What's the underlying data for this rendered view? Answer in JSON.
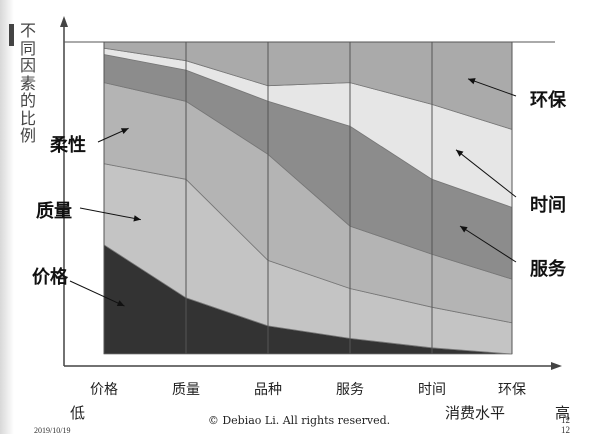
{
  "ylabel": "不同因素的比例",
  "axis": {
    "low": "低",
    "high": "高",
    "xtitle": "消费水平"
  },
  "footer": "© Debiao Li. All rights reserved.",
  "date": "2019/10/19",
  "page_top": "12",
  "page_bottom": "12",
  "chart_data": {
    "type": "area",
    "stacked": true,
    "categories": [
      "价格",
      "质量",
      "品种",
      "服务",
      "时间",
      "环保"
    ],
    "series": [
      {
        "name": "价格",
        "values": [
          35,
          18,
          9,
          5,
          2,
          0
        ]
      },
      {
        "name": "质量",
        "values": [
          26,
          38,
          21,
          16,
          13,
          10
        ]
      },
      {
        "name": "柔性",
        "values": [
          26,
          25,
          34,
          20,
          17,
          14
        ]
      },
      {
        "name": "服务",
        "values": [
          9,
          10,
          17,
          32,
          24,
          23
        ]
      },
      {
        "name": "时间",
        "values": [
          2,
          3,
          5,
          14,
          24,
          25
        ]
      },
      {
        "name": "环保",
        "values": [
          2,
          6,
          14,
          13,
          20,
          28
        ]
      }
    ],
    "colors": [
      "#333333",
      "#c4c4c4",
      "#b4b4b4",
      "#8c8c8c",
      "#e6e6e6",
      "#aaaaaa"
    ],
    "ylim": [
      0,
      100
    ],
    "annotations": [
      "柔性",
      "质量",
      "价格",
      "环保",
      "时间",
      "服务"
    ]
  }
}
